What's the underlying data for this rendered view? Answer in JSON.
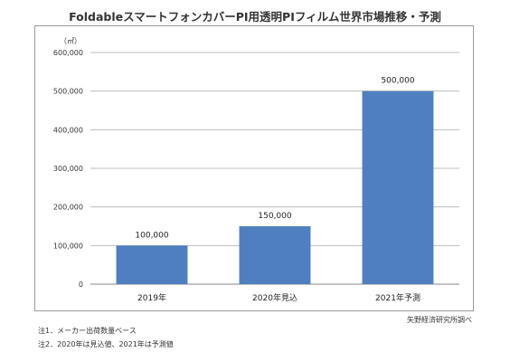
{
  "title": "FoldableスマートフォンカバーPI用透明PIフィルム世界市場推移・予測",
  "unit_label": "（㎡）",
  "source": "矢野経済研究所調べ",
  "notes": [
    "注1．メーカー出荷数量ベース",
    "注2．2020年は見込値、2021年は予測値"
  ],
  "colors": {
    "bar": "#4f7fc0",
    "grid": "#bdbdbd",
    "axis": "#888888"
  },
  "chart_data": {
    "type": "bar",
    "title": "FoldableスマートフォンカバーPI用透明PIフィルム世界市場推移・予測",
    "ylabel": "（㎡）",
    "categories": [
      "2019年",
      "2020年見込",
      "2021年予測"
    ],
    "values": [
      100000,
      150000,
      500000
    ],
    "data_labels": [
      "100,000",
      "150,000",
      "500,000"
    ],
    "ylim": [
      0,
      600000
    ],
    "yticks": [
      0,
      100000,
      200000,
      300000,
      400000,
      500000,
      600000
    ],
    "ytick_labels": [
      "0",
      "100,000",
      "200,000",
      "300,000",
      "400,000",
      "500,000",
      "600,000"
    ],
    "grid": true,
    "legend": "none"
  }
}
